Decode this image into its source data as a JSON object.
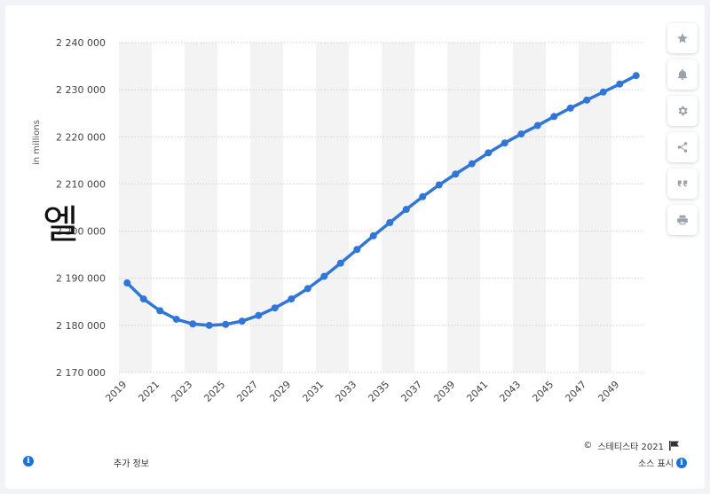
{
  "chart_data": {
    "type": "line",
    "ylabel": "in millions",
    "ylim": [
      2170000,
      2240000
    ],
    "yticks": [
      2170000,
      2180000,
      2190000,
      2200000,
      2210000,
      2220000,
      2230000,
      2240000
    ],
    "ytick_labels": [
      "2 170 000",
      "2 180 000",
      "2 190 000",
      "2 200 000",
      "2 210 000",
      "2 220 000",
      "2 230 000",
      "2 240 000"
    ],
    "xtick_labels": [
      "2019",
      "2021",
      "2023",
      "2025",
      "2027",
      "2029",
      "2031",
      "2033",
      "2035",
      "2037",
      "2039",
      "2041",
      "2043",
      "2045",
      "2047",
      "2049"
    ],
    "x": [
      2019,
      2020,
      2021,
      2022,
      2023,
      2024,
      2025,
      2026,
      2027,
      2028,
      2029,
      2030,
      2031,
      2032,
      2033,
      2034,
      2035,
      2036,
      2037,
      2038,
      2039,
      2040,
      2041,
      2042,
      2043,
      2044,
      2045,
      2046,
      2047,
      2048,
      2049,
      2050
    ],
    "series": [
      {
        "values": [
          2189000,
          2185600,
          2183100,
          2181300,
          2180300,
          2180000,
          2180200,
          2180900,
          2182100,
          2183700,
          2185600,
          2187800,
          2190400,
          2193200,
          2196100,
          2199000,
          2201800,
          2204600,
          2207300,
          2209800,
          2212100,
          2214300,
          2216600,
          2218700,
          2220600,
          2222400,
          2224300,
          2226100,
          2227800,
          2229500,
          2231200,
          2233000
        ],
        "color": "#2f76d8"
      }
    ],
    "grid": true,
    "alternating_bands": true
  },
  "ui": {
    "big_glyph": "엘",
    "copyright": "스테티스타 2021",
    "more_info": "추가 정보",
    "source": "소스 표시"
  },
  "toolbar_icons": [
    "star-icon",
    "bell-icon",
    "gear-icon",
    "share-icon",
    "quote-icon",
    "print-icon"
  ]
}
